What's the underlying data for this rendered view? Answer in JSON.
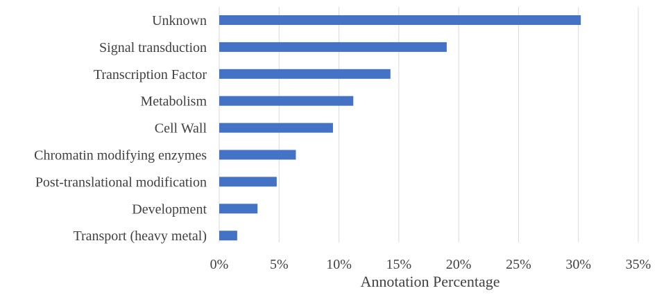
{
  "chart_data": {
    "type": "bar",
    "orientation": "horizontal",
    "categories": [
      "Unknown",
      "Signal transduction",
      "Transcription Factor",
      "Metabolism",
      "Cell Wall",
      "Chromatin modifying enzymes",
      "Post-translational modification",
      "Development",
      "Transport (heavy metal)"
    ],
    "values": [
      0.302,
      0.19,
      0.143,
      0.112,
      0.095,
      0.064,
      0.048,
      0.032,
      0.015
    ],
    "xlabel": "Annotation Percentage",
    "ylabel": "",
    "xlim": [
      0,
      0.35
    ],
    "xticks": [
      0,
      0.05,
      0.1,
      0.15,
      0.2,
      0.25,
      0.3,
      0.35
    ],
    "xtick_labels": [
      "0%",
      "5%",
      "10%",
      "15%",
      "20%",
      "25%",
      "30%",
      "35%"
    ],
    "grid": "vertical",
    "legend": "none",
    "bar_color": "#4472C4"
  },
  "colors": {
    "bar": "#4472C4",
    "grid": "#d9d9d9",
    "text": "#404040"
  }
}
